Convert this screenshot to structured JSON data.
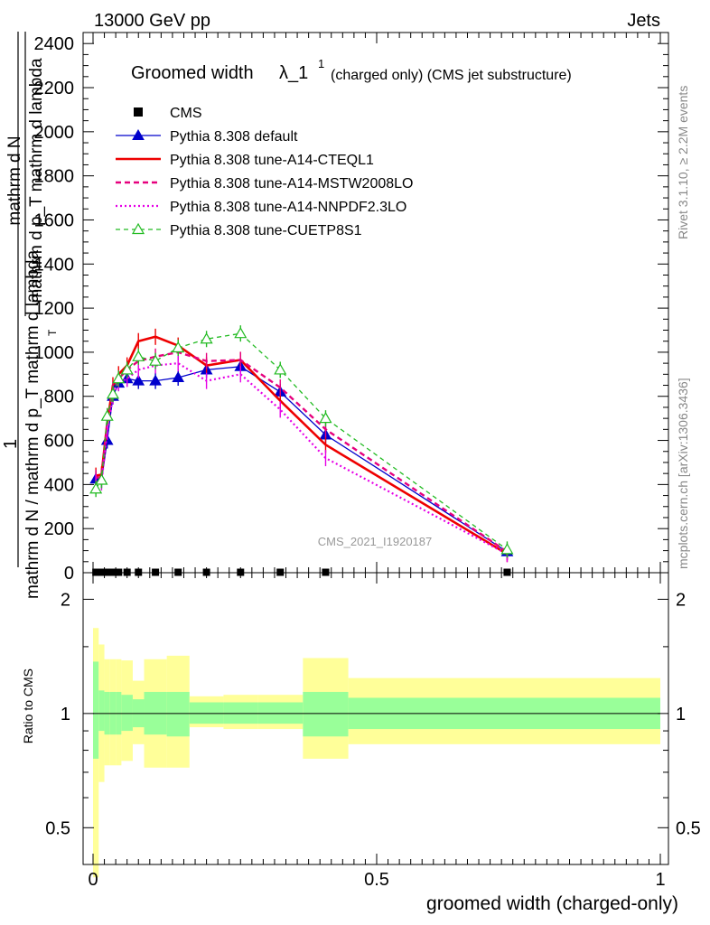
{
  "header": {
    "left": "13000 GeV pp",
    "right": "Jets"
  },
  "plot": {
    "title_main": "Groomed width",
    "title_lambda": "λ_1",
    "title_sup": "1",
    "title_rest": "(charged only) (CMS jet substructure)",
    "watermark": "CMS_2021_I1920187",
    "side_rivet": "Rivet 3.1.10, ≥ 2.2M events",
    "side_mcplots": "mcplots.cern.ch [arXiv:1306.3436]",
    "ylabel_top": "1",
    "ylabel_frac_num": "mathrm d N",
    "ylabel_frac_den": "mathrm d p_T mathrm d lambda",
    "ylabel_full": "mathrm d N / mathrm d p_T mathrm d lambda",
    "ylabel_pt": "T",
    "ratio_ylabel": "Ratio to CMS",
    "xlabel": "groomed width (charged-only)"
  },
  "colors": {
    "cms": "#000000",
    "default": "#0000cc",
    "cteql1": "#ee0000",
    "mstw": "#e6007e",
    "nnpdf": "#e600e6",
    "cuetp": "#22bb22",
    "band_inner": "#99ff99",
    "band_outer": "#ffff99"
  },
  "chart_data": [
    {
      "type": "line",
      "xlabel": "groomed width (charged-only)",
      "ylabel": "mathrm d N / mathrm d p_T mathrm d lambda",
      "xlim": [
        0,
        1
      ],
      "ylim": [
        0,
        2450
      ],
      "yticks": [
        0,
        200,
        400,
        600,
        800,
        1000,
        1200,
        1400,
        1600,
        1800,
        2000,
        2200,
        2400
      ],
      "ytick_labels": [
        "0",
        "200",
        "400",
        "600",
        "800",
        "1000",
        "1200",
        "1400",
        "1600",
        "1800",
        "2000",
        "2200",
        "2400"
      ],
      "legend_position": "top-left",
      "x": [
        0.005,
        0.015,
        0.025,
        0.035,
        0.045,
        0.06,
        0.08,
        0.11,
        0.15,
        0.2,
        0.26,
        0.33,
        0.41,
        0.73
      ],
      "series": [
        {
          "name": "CMS",
          "style": "marker-square",
          "values": [
            2,
            2,
            2,
            2,
            2,
            2,
            2,
            2,
            2,
            2,
            2,
            2,
            2,
            2
          ]
        },
        {
          "name": "Pythia 8.308 default",
          "style": "solid-triangle",
          "values": [
            425,
            420,
            600,
            800,
            860,
            880,
            870,
            870,
            885,
            920,
            935,
            820,
            625,
            95
          ]
        },
        {
          "name": "Pythia 8.308 tune-A14-CTEQL1",
          "style": "solid-thick",
          "values": [
            440,
            445,
            680,
            850,
            900,
            940,
            1050,
            1070,
            1030,
            940,
            965,
            780,
            580,
            85
          ]
        },
        {
          "name": "Pythia 8.308 tune-A14-MSTW2008LO",
          "style": "dashed",
          "values": [
            430,
            435,
            670,
            830,
            880,
            920,
            960,
            980,
            1000,
            960,
            965,
            840,
            650,
            95
          ]
        },
        {
          "name": "Pythia 8.308 tune-A14-NNPDF2.3LO",
          "style": "dotted",
          "values": [
            410,
            410,
            640,
            800,
            860,
            880,
            920,
            940,
            950,
            870,
            900,
            740,
            520,
            85
          ]
        },
        {
          "name": "Pythia 8.308 tune-CUETP8S1",
          "style": "dashed-open-triangle",
          "values": [
            380,
            420,
            710,
            810,
            880,
            920,
            980,
            960,
            1020,
            1060,
            1085,
            920,
            700,
            105
          ]
        }
      ]
    },
    {
      "type": "area",
      "ylabel": "Ratio to CMS",
      "xlabel": "groomed width (charged-only)",
      "xlim": [
        0,
        1
      ],
      "ylim": [
        0.4,
        2.35
      ],
      "log_scale": true,
      "yticks": [
        0.5,
        1,
        2
      ],
      "ytick_labels": [
        "0.5",
        "1",
        "2"
      ],
      "xticks": [
        0,
        0.5,
        1
      ],
      "xtick_labels": [
        "0",
        "0.5",
        "1"
      ],
      "bins": [
        0,
        0.01,
        0.02,
        0.03,
        0.04,
        0.05,
        0.07,
        0.09,
        0.13,
        0.17,
        0.23,
        0.29,
        0.37,
        0.45,
        1.0
      ],
      "stat_band": [
        [
          0.76,
          1.37
        ],
        [
          0.9,
          1.15
        ],
        [
          0.88,
          1.14
        ],
        [
          0.88,
          1.14
        ],
        [
          0.88,
          1.14
        ],
        [
          0.9,
          1.12
        ],
        [
          0.92,
          1.09
        ],
        [
          0.88,
          1.14
        ],
        [
          0.87,
          1.14
        ],
        [
          0.94,
          1.07
        ],
        [
          0.94,
          1.07
        ],
        [
          0.94,
          1.07
        ],
        [
          0.87,
          1.14
        ],
        [
          0.91,
          1.1
        ]
      ],
      "total_band": [
        [
          0.37,
          1.68
        ],
        [
          0.66,
          1.52
        ],
        [
          0.73,
          1.39
        ],
        [
          0.73,
          1.39
        ],
        [
          0.73,
          1.39
        ],
        [
          0.75,
          1.38
        ],
        [
          0.83,
          1.22
        ],
        [
          0.72,
          1.39
        ],
        [
          0.72,
          1.42
        ],
        [
          0.92,
          1.11
        ],
        [
          0.91,
          1.12
        ],
        [
          0.91,
          1.12
        ],
        [
          0.76,
          1.4
        ],
        [
          0.83,
          1.24
        ]
      ],
      "reference": 1
    }
  ]
}
